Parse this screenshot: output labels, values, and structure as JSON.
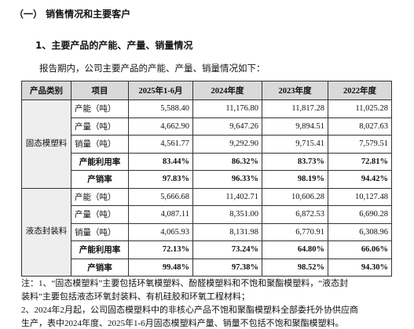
{
  "heading": "（一）  销售情况和主要客户",
  "section_title": "1、主要产品的产能、产量、销量情况",
  "intro": "报告期内，公司主要产品的产能、产量、销量情况如下：",
  "table": {
    "header": [
      "产品类别",
      "项目",
      "2025年1-6月",
      "2024年度",
      "2023年度",
      "2022年度"
    ],
    "groups": [
      {
        "category": "固态模塑料",
        "rows": [
          [
            "产能（吨）",
            "5,588.40",
            "11,176.80",
            "11,817.28",
            "11,025.28"
          ],
          [
            "产量（吨）",
            "4,662.90",
            "9,647.26",
            "9,894.51",
            "8,027.63"
          ],
          [
            "销量（吨）",
            "4,561.77",
            "9,292.90",
            "9,715.41",
            "7,579.51"
          ],
          [
            "产能利用率",
            "83.44%",
            "86.32%",
            "83.73%",
            "72.81%"
          ],
          [
            "产销率",
            "97.83%",
            "96.33%",
            "98.19%",
            "94.42%"
          ]
        ]
      },
      {
        "category": "液态封装料",
        "rows": [
          [
            "产能（吨）",
            "5,666.68",
            "11,402.71",
            "10,606.28",
            "10,127.48"
          ],
          [
            "产量（吨）",
            "4,087.11",
            "8,351.00",
            "6,872.53",
            "6,690.28"
          ],
          [
            "销量（吨）",
            "4,065.93",
            "8,131.98",
            "6,770.91",
            "6,308.96"
          ],
          [
            "产能利用率",
            "72.13%",
            "73.24%",
            "64.80%",
            "66.06%"
          ],
          [
            "产销率",
            "99.48%",
            "97.38%",
            "98.52%",
            "94.30%"
          ]
        ]
      }
    ]
  },
  "notes": [
    "注：1、“固态模塑料”主要包括环氧模塑料、酚醛模塑料和不饱和聚酯模塑料，“液态封",
    "装料”主要包括液态环氧封装料、有机硅胶和环氧工程材料；",
    "2、2024年2月起，公司固态模塑料中的非核心产品不饱和聚酯模塑料全部委托外协供应商",
    "生产，表中2024年度、2025年1-6月固态模塑料产量、销量不包括不饱和聚酯模塑料。"
  ]
}
